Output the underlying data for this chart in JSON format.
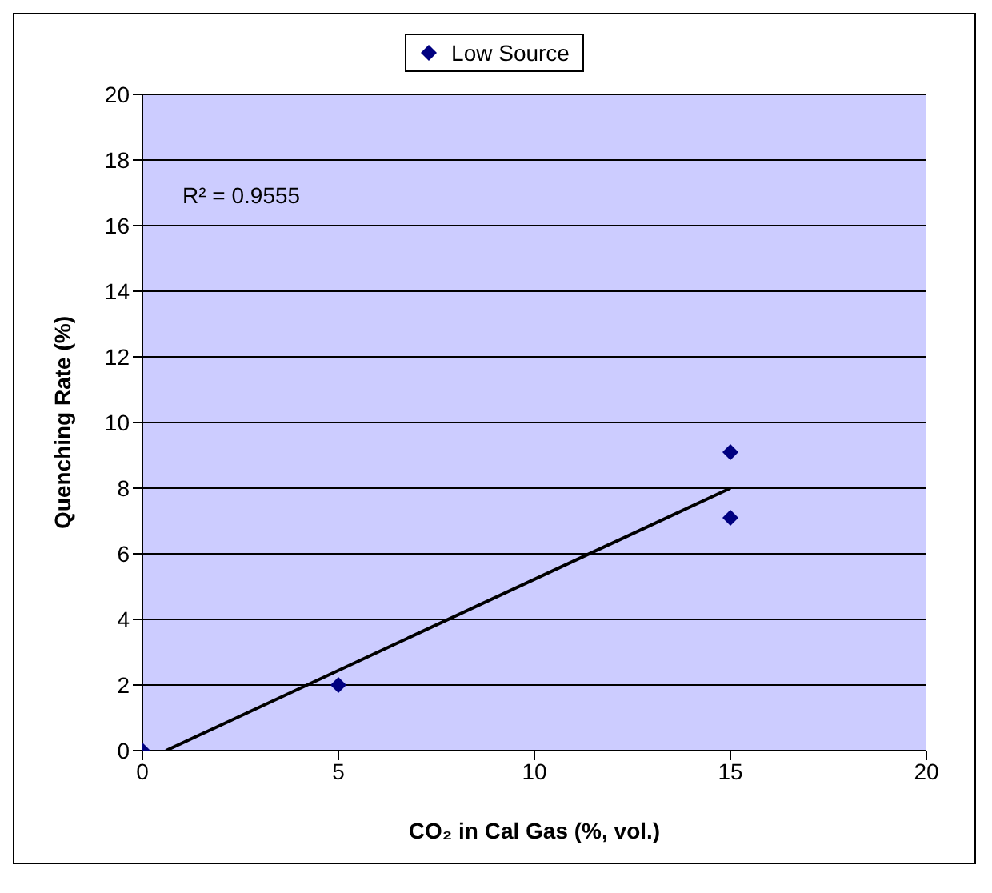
{
  "chart_data": {
    "type": "scatter",
    "xlabel": "CO₂ in Cal Gas (%, vol.)",
    "ylabel": "Quenching Rate (%)",
    "annotations": [
      "R² = 0.9555"
    ],
    "series": [
      {
        "name": "Low Source",
        "color": "#000080",
        "marker": "diamond",
        "x": [
          0,
          5,
          15,
          15
        ],
        "values": [
          0,
          2,
          9.1,
          7.1
        ]
      },
      {
        "type": "line",
        "color": "#000000",
        "marker": "none",
        "x": [
          0.6,
          15
        ],
        "values": [
          0,
          8
        ]
      }
    ],
    "xlim": [
      0,
      20
    ],
    "xticks": [
      0,
      5,
      10,
      15,
      20
    ],
    "ylim": [
      0,
      20
    ],
    "yticks": [
      0,
      2,
      4,
      6,
      8,
      10,
      12,
      14,
      16,
      18,
      20
    ],
    "grid": "y",
    "legend": "top"
  }
}
